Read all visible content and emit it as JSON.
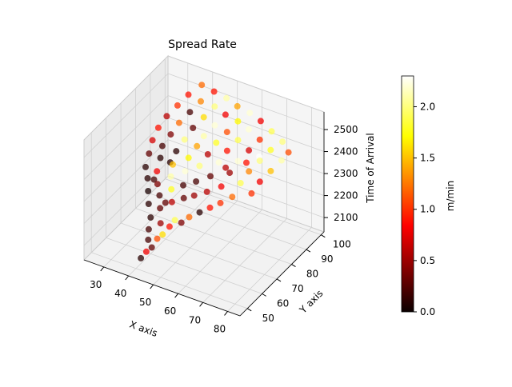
{
  "chart_data": {
    "type": "scatter",
    "projection": "3d",
    "title": "Spread Rate",
    "xlabel": "X axis",
    "ylabel": "Y axis",
    "zlabel": "Time of Arrival",
    "xlim": [
      22,
      85
    ],
    "ylim": [
      45,
      102
    ],
    "zlim": [
      2035,
      2580
    ],
    "xticks": [
      30,
      40,
      50,
      60,
      70,
      80
    ],
    "yticks": [
      50,
      60,
      70,
      80,
      90,
      100
    ],
    "zticks": [
      2100,
      2200,
      2300,
      2400,
      2500
    ],
    "grid": true,
    "colormap": "hot",
    "colorbar": {
      "label": "m/min",
      "range": [
        0,
        2.3
      ],
      "ticks": [
        "0.0",
        "0.5",
        "1.0",
        "1.5",
        "2.0"
      ],
      "tick_values": [
        0,
        0.5,
        1.0,
        1.5,
        2.0
      ]
    },
    "points": [
      [
        42,
        50,
        2090,
        0.1
      ],
      [
        43,
        52,
        2110,
        0.8
      ],
      [
        44,
        54,
        2120,
        0.3
      ],
      [
        42,
        55,
        2140,
        0.2
      ],
      [
        45,
        56,
        2150,
        1.1
      ],
      [
        41,
        57,
        2170,
        0.2
      ],
      [
        46,
        58,
        2160,
        1.6
      ],
      [
        40,
        60,
        2200,
        0.1
      ],
      [
        44,
        60,
        2190,
        0.5
      ],
      [
        47,
        61,
        2180,
        0.9
      ],
      [
        38,
        62,
        2240,
        0.1
      ],
      [
        42,
        63,
        2230,
        0.3
      ],
      [
        48,
        63,
        2200,
        1.9
      ],
      [
        50,
        64,
        2190,
        0.4
      ],
      [
        36,
        65,
        2270,
        0.05
      ],
      [
        40,
        66,
        2260,
        0.2
      ],
      [
        45,
        66,
        2250,
        0.6
      ],
      [
        52,
        66,
        2210,
        1.2
      ],
      [
        34,
        68,
        2300,
        0.1
      ],
      [
        38,
        68,
        2290,
        0.4
      ],
      [
        43,
        69,
        2280,
        1.8
      ],
      [
        48,
        69,
        2260,
        0.3
      ],
      [
        55,
        68,
        2230,
        0.1
      ],
      [
        32,
        70,
        2330,
        0.1
      ],
      [
        36,
        71,
        2320,
        0.8
      ],
      [
        41,
        72,
        2310,
        2.1
      ],
      [
        46,
        72,
        2290,
        0.2
      ],
      [
        51,
        71,
        2270,
        0.5
      ],
      [
        58,
        70,
        2250,
        0.9
      ],
      [
        31,
        74,
        2360,
        0.3
      ],
      [
        35,
        75,
        2350,
        0.1
      ],
      [
        40,
        75,
        2340,
        1.5
      ],
      [
        45,
        75,
        2330,
        2.2
      ],
      [
        50,
        74,
        2310,
        0.2
      ],
      [
        55,
        73,
        2290,
        0.6
      ],
      [
        61,
        72,
        2270,
        1.0
      ],
      [
        30,
        78,
        2390,
        0.7
      ],
      [
        34,
        78,
        2380,
        0.2
      ],
      [
        39,
        79,
        2370,
        0.1
      ],
      [
        44,
        79,
        2360,
        1.7
      ],
      [
        49,
        78,
        2350,
        2.0
      ],
      [
        54,
        77,
        2330,
        0.3
      ],
      [
        59,
        76,
        2310,
        0.8
      ],
      [
        64,
        75,
        2290,
        1.2
      ],
      [
        30,
        82,
        2420,
        0.9
      ],
      [
        35,
        82,
        2410,
        0.4
      ],
      [
        40,
        83,
        2400,
        2.0
      ],
      [
        45,
        83,
        2390,
        1.4
      ],
      [
        50,
        82,
        2380,
        0.6
      ],
      [
        55,
        81,
        2370,
        2.2
      ],
      [
        60,
        80,
        2350,
        0.5
      ],
      [
        65,
        79,
        2330,
        1.9
      ],
      [
        70,
        78,
        2310,
        1.0
      ],
      [
        31,
        86,
        2450,
        0.6
      ],
      [
        36,
        86,
        2440,
        1.2
      ],
      [
        41,
        87,
        2430,
        0.3
      ],
      [
        46,
        86,
        2420,
        2.1
      ],
      [
        51,
        86,
        2410,
        1.8
      ],
      [
        56,
        85,
        2400,
        0.9
      ],
      [
        61,
        84,
        2380,
        2.2
      ],
      [
        66,
        83,
        2360,
        1.3
      ],
      [
        71,
        82,
        2340,
        0.8
      ],
      [
        33,
        90,
        2480,
        1.0
      ],
      [
        38,
        90,
        2470,
        0.2
      ],
      [
        43,
        91,
        2460,
        1.6
      ],
      [
        48,
        90,
        2450,
        2.2
      ],
      [
        53,
        90,
        2440,
        1.1
      ],
      [
        58,
        89,
        2430,
        1.9
      ],
      [
        63,
        88,
        2410,
        0.7
      ],
      [
        68,
        87,
        2390,
        2.0
      ],
      [
        73,
        86,
        2370,
        1.5
      ],
      [
        35,
        94,
        2510,
        0.9
      ],
      [
        40,
        94,
        2500,
        1.3
      ],
      [
        45,
        95,
        2490,
        2.0
      ],
      [
        50,
        94,
        2480,
        0.8
      ],
      [
        55,
        94,
        2470,
        1.7
      ],
      [
        60,
        93,
        2460,
        2.2
      ],
      [
        65,
        92,
        2440,
        1.0
      ],
      [
        70,
        91,
        2420,
        1.8
      ],
      [
        75,
        90,
        2400,
        2.1
      ],
      [
        38,
        98,
        2540,
        1.2
      ],
      [
        43,
        98,
        2530,
        0.9
      ],
      [
        48,
        98,
        2520,
        2.1
      ],
      [
        53,
        97,
        2510,
        1.4
      ],
      [
        58,
        97,
        2500,
        2.2
      ],
      [
        63,
        96,
        2490,
        0.8
      ],
      [
        68,
        95,
        2470,
        1.9
      ],
      [
        73,
        94,
        2450,
        2.0
      ],
      [
        76,
        93,
        2420,
        1.1
      ],
      [
        33,
        74,
        2250,
        0.2
      ],
      [
        36,
        80,
        2300,
        0.1
      ],
      [
        40,
        70,
        2200,
        0.3
      ],
      [
        56,
        84,
        2330,
        0.6
      ],
      [
        62,
        88,
        2350,
        0.9
      ],
      [
        66,
        90,
        2380,
        2.3
      ]
    ]
  }
}
